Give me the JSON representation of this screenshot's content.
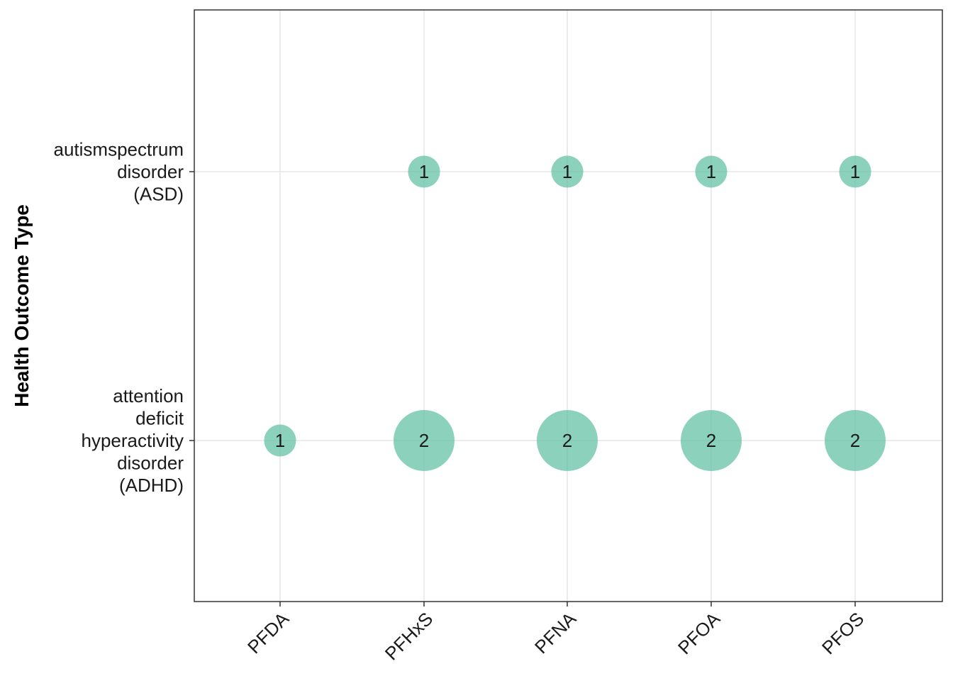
{
  "chart_data": {
    "type": "scatter",
    "title": "",
    "xlabel": "",
    "ylabel": "Health Outcome Type",
    "x_categories": [
      "PFDA",
      "PFHxS",
      "PFNA",
      "PFOA",
      "PFOS"
    ],
    "y_categories": [
      {
        "label": "attention deficit hyperactivity disorder (ADHD)",
        "lines": [
          "attention",
          "deficit",
          "hyperactivity",
          "disorder",
          "(ADHD)"
        ]
      },
      {
        "label": "autismspectrum disorder (ASD)",
        "lines": [
          "autismspectrum",
          "disorder",
          "(ASD)"
        ]
      }
    ],
    "points": [
      {
        "x": "PFDA",
        "y": "attention deficit hyperactivity disorder (ADHD)",
        "count": 1
      },
      {
        "x": "PFHxS",
        "y": "attention deficit hyperactivity disorder (ADHD)",
        "count": 2
      },
      {
        "x": "PFNA",
        "y": "attention deficit hyperactivity disorder (ADHD)",
        "count": 2
      },
      {
        "x": "PFOA",
        "y": "attention deficit hyperactivity disorder (ADHD)",
        "count": 2
      },
      {
        "x": "PFOS",
        "y": "attention deficit hyperactivity disorder (ADHD)",
        "count": 2
      },
      {
        "x": "PFHxS",
        "y": "autismspectrum disorder (ASD)",
        "count": 1
      },
      {
        "x": "PFNA",
        "y": "autismspectrum disorder (ASD)",
        "count": 1
      },
      {
        "x": "PFOA",
        "y": "autismspectrum disorder (ASD)",
        "count": 1
      },
      {
        "x": "PFOS",
        "y": "autismspectrum disorder (ASD)",
        "count": 1
      }
    ],
    "bubble_color": "#66c2a5",
    "grid": true,
    "legend": "none"
  }
}
